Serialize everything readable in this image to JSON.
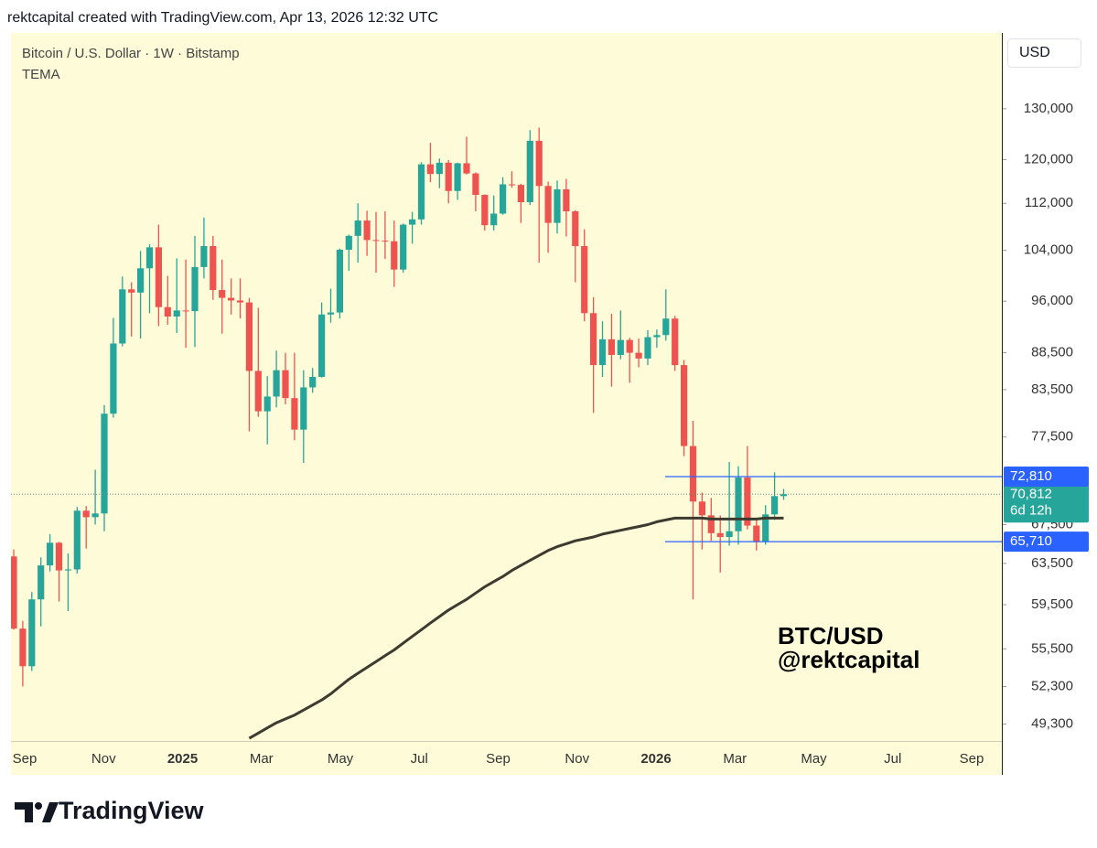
{
  "header": "rektcapital created with TradingView.com, Apr 13, 2026 12:32 UTC",
  "footer_brand": "TradingView",
  "chart_data": {
    "type": "candlestick",
    "title": "Bitcoin / U.S. Dollar · 1W · Bitstamp",
    "currency": "USD",
    "watermark": [
      "BTC/USD",
      "@rektcapital"
    ],
    "log_scale": true,
    "up_color": "#26a69a",
    "down_color": "#ef5350",
    "ylim": [
      48000,
      146500
    ],
    "yticks": [
      {
        "value": 49300,
        "label": "49,300"
      },
      {
        "value": 52300,
        "label": "52,300"
      },
      {
        "value": 55500,
        "label": "55,500"
      },
      {
        "value": 59500,
        "label": "59,500"
      },
      {
        "value": 63500,
        "label": "63,500"
      },
      {
        "value": 67500,
        "label": "67,500"
      },
      {
        "value": 77500,
        "label": "77,500"
      },
      {
        "value": 83500,
        "label": "83,500"
      },
      {
        "value": 88500,
        "label": "88,500"
      },
      {
        "value": 96000,
        "label": "96,000"
      },
      {
        "value": 104000,
        "label": "104,000"
      },
      {
        "value": 112000,
        "label": "112,000"
      },
      {
        "value": 120000,
        "label": "120,000"
      },
      {
        "value": 130000,
        "label": "130,000"
      }
    ],
    "x_labels": [
      "Sep",
      "Nov",
      "2025",
      "Mar",
      "May",
      "Jul",
      "Sep",
      "Nov",
      "2026",
      "Mar",
      "May",
      "Jul",
      "Sep"
    ],
    "candles": {
      "open": [
        64200,
        57300,
        54000,
        60000,
        63300,
        65600,
        62800,
        62900,
        69000,
        68300,
        68700,
        80400,
        89800,
        97800,
        97300,
        101100,
        104500,
        95100,
        93700,
        94600,
        94500,
        101300,
        104700,
        97700,
        96500,
        96100,
        95800,
        86000,
        80700,
        82600,
        86100,
        82400,
        78400,
        83800,
        85200,
        94000,
        94300,
        104100,
        106400,
        109000,
        105700,
        105600,
        105500,
        100900,
        108300,
        109200,
        119100,
        117300,
        119400,
        114200,
        119300,
        117400,
        113500,
        108200,
        110200,
        115400,
        115300,
        112200,
        123600,
        115100,
        108600,
        114500,
        110600,
        104700,
        94200,
        86800,
        90400,
        88200,
        90300,
        88500,
        87700,
        90700,
        91000,
        93400,
        86800,
        76400,
        70000,
        68500,
        66600,
        66200,
        66800,
        72700,
        67400,
        65700,
        68600,
        70600
      ],
      "high": [
        64900,
        58000,
        60700,
        64100,
        66500,
        65700,
        64500,
        69400,
        69500,
        73600,
        81500,
        93500,
        99800,
        98900,
        103900,
        105000,
        108300,
        99900,
        102700,
        102500,
        106400,
        109500,
        106400,
        102500,
        99500,
        99500,
        96500,
        95000,
        85300,
        88800,
        88500,
        88500,
        86100,
        86400,
        95800,
        97900,
        104300,
        106600,
        112000,
        110700,
        110500,
        110600,
        109000,
        108500,
        110500,
        119500,
        123200,
        120200,
        119900,
        119400,
        124400,
        117600,
        113600,
        113400,
        116700,
        117800,
        115500,
        125700,
        126200,
        115900,
        116100,
        116400,
        110800,
        107500,
        96600,
        93000,
        94100,
        94600,
        90600,
        90500,
        91700,
        91800,
        97800,
        93800,
        87500,
        79500,
        71000,
        70400,
        68500,
        74500,
        74000,
        76400,
        68000,
        69600,
        73300,
        71400
      ],
      "low": [
        57200,
        52300,
        53600,
        57500,
        62700,
        59800,
        58900,
        62500,
        65000,
        67500,
        66800,
        79900,
        89400,
        90800,
        90500,
        94200,
        92300,
        92500,
        91300,
        89200,
        89300,
        99500,
        96200,
        91200,
        94000,
        93400,
        78200,
        80000,
        76600,
        81200,
        81600,
        77100,
        74400,
        83100,
        85100,
        92800,
        93400,
        100700,
        102000,
        103100,
        100400,
        102600,
        98200,
        100400,
        105100,
        108300,
        115800,
        114700,
        112000,
        112600,
        117200,
        110600,
        107300,
        107300,
        110000,
        114800,
        108600,
        111700,
        102000,
        103600,
        106800,
        106300,
        98900,
        93000,
        80500,
        85200,
        83900,
        87600,
        84400,
        86500,
        86800,
        89200,
        90200,
        86000,
        75200,
        60000,
        64900,
        65800,
        62600,
        65300,
        65400,
        67000,
        64800,
        65400,
        68000,
        70200
      ],
      "close": [
        57300,
        54000,
        60000,
        63300,
        65600,
        62800,
        62900,
        69000,
        68300,
        68700,
        80400,
        89800,
        97800,
        97300,
        101100,
        104500,
        95100,
        93700,
        94600,
        94500,
        101300,
        104700,
        97700,
        96500,
        96100,
        95800,
        86000,
        80700,
        82600,
        86100,
        82400,
        78400,
        83800,
        85200,
        94000,
        94300,
        104100,
        106400,
        109000,
        105700,
        105600,
        105500,
        100900,
        108300,
        109200,
        119100,
        117300,
        119400,
        114200,
        119300,
        117400,
        113500,
        108200,
        110200,
        115400,
        115300,
        112200,
        123600,
        115100,
        108600,
        114500,
        110600,
        104700,
        94200,
        86800,
        90400,
        88200,
        90300,
        88500,
        87700,
        90700,
        91000,
        93400,
        86800,
        76400,
        70000,
        68500,
        66600,
        66200,
        66800,
        72700,
        67400,
        65700,
        68600,
        70600,
        70812
      ]
    },
    "series": [
      {
        "name": "TEMA",
        "color": "#3d3a30",
        "values": [
          null,
          null,
          null,
          null,
          null,
          null,
          null,
          null,
          null,
          null,
          null,
          null,
          null,
          null,
          null,
          null,
          null,
          null,
          null,
          null,
          null,
          null,
          null,
          null,
          null,
          null,
          48200,
          48600,
          49000,
          49400,
          49700,
          50000,
          50400,
          50800,
          51200,
          51700,
          52300,
          52900,
          53400,
          53900,
          54400,
          54900,
          55400,
          56000,
          56600,
          57200,
          57800,
          58400,
          59000,
          59500,
          60000,
          60600,
          61200,
          61700,
          62200,
          62800,
          63300,
          63800,
          64300,
          64800,
          65200,
          65500,
          65800,
          66000,
          66200,
          66500,
          66700,
          66900,
          67100,
          67300,
          67500,
          67800,
          68000,
          68200,
          68200,
          68200,
          68200,
          68100,
          68100,
          68100,
          68100,
          68100,
          68100,
          68200,
          68200,
          68200
        ]
      }
    ],
    "levels": [
      {
        "value": 72810,
        "label": "72,810"
      },
      {
        "value": 65710,
        "label": "65,710"
      }
    ],
    "level_color": "#2962ff",
    "last_price": {
      "value": 70812,
      "label": "70,812"
    },
    "countdown": "6d 12h"
  }
}
